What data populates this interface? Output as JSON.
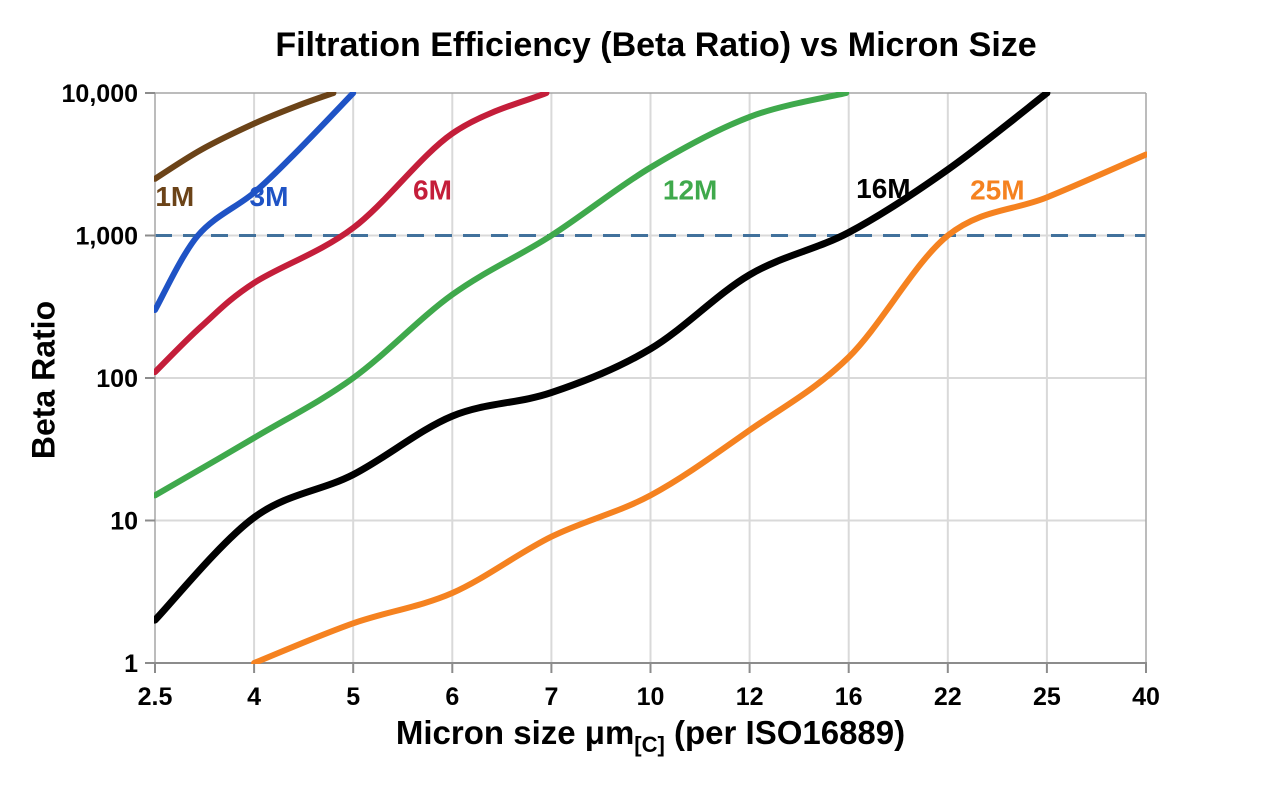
{
  "chart_data": {
    "type": "line",
    "title": "Filtration Efficiency (Beta Ratio) vs Micron Size",
    "xlabel": "Micron size μm[C] (per ISO16889)",
    "xlabel_main": "Micron size μm",
    "xlabel_sub": "[C]",
    "xlabel_suffix": " (per ISO16889)",
    "ylabel": "Beta Ratio",
    "y_scale": "log",
    "ylim": [
      1,
      10000
    ],
    "grid": true,
    "x_ticks": [
      2.5,
      4,
      5,
      6,
      7,
      10,
      12,
      16,
      22,
      25,
      40
    ],
    "x_tick_labels": [
      "2.5",
      "4",
      "5",
      "6",
      "7",
      "10",
      "12",
      "16",
      "22",
      "25",
      "40"
    ],
    "y_ticks": [
      1,
      10,
      100,
      1000,
      10000
    ],
    "y_tick_labels": [
      "1",
      "10",
      "100",
      "1,000",
      "10,000"
    ],
    "reference_line": {
      "value": 1000,
      "style": "dashed",
      "color": "#41719C"
    },
    "colors": {
      "grid": "#D9D9D9",
      "frame": "#A6A6A6",
      "axis": "#8C8C8C",
      "text": "#000000"
    },
    "series": [
      {
        "name": "1M",
        "color": "#6B4318",
        "label_at": [
          2.8,
          1900
        ],
        "points": [
          [
            2.5,
            2500
          ],
          [
            3.2,
            4000
          ],
          [
            4,
            6100
          ],
          [
            4.45,
            8200
          ],
          [
            4.8,
            10000
          ]
        ]
      },
      {
        "name": "3M",
        "color": "#1F53C5",
        "label_at": [
          4.15,
          1900
        ],
        "points": [
          [
            2.5,
            300
          ],
          [
            3.15,
            1000
          ],
          [
            4,
            2000
          ],
          [
            4.45,
            4000
          ],
          [
            5,
            10000
          ]
        ]
      },
      {
        "name": "6M",
        "color": "#C41E3A",
        "label_at": [
          5.8,
          2100
        ],
        "points": [
          [
            2.5,
            110
          ],
          [
            3.2,
            230
          ],
          [
            4,
            465
          ],
          [
            5,
            1130
          ],
          [
            6,
            5200
          ],
          [
            6.95,
            10000
          ]
        ]
      },
      {
        "name": "12M",
        "color": "#3FA94C",
        "label_at": [
          10.8,
          2100
        ],
        "points": [
          [
            2.5,
            15
          ],
          [
            4,
            38
          ],
          [
            5,
            100
          ],
          [
            6,
            385
          ],
          [
            7,
            1000
          ],
          [
            10,
            3000
          ],
          [
            12,
            6800
          ],
          [
            15.9,
            10000
          ]
        ]
      },
      {
        "name": "16M",
        "color": "#000000",
        "label_at": [
          18.1,
          2150
        ],
        "points": [
          [
            2.5,
            2
          ],
          [
            4,
            10.5
          ],
          [
            5,
            21
          ],
          [
            6,
            54
          ],
          [
            7,
            79
          ],
          [
            10,
            160
          ],
          [
            12,
            530
          ],
          [
            16,
            1050
          ],
          [
            22,
            2900
          ],
          [
            25,
            10000
          ]
        ]
      },
      {
        "name": "25M",
        "color": "#F58220",
        "label_at": [
          23.5,
          2100
        ],
        "points": [
          [
            4,
            1
          ],
          [
            5,
            1.9
          ],
          [
            6,
            3.1
          ],
          [
            7,
            7.7
          ],
          [
            10,
            15
          ],
          [
            12,
            43
          ],
          [
            16,
            140
          ],
          [
            22,
            1000
          ],
          [
            25,
            1850
          ],
          [
            40,
            3700
          ]
        ]
      }
    ]
  }
}
